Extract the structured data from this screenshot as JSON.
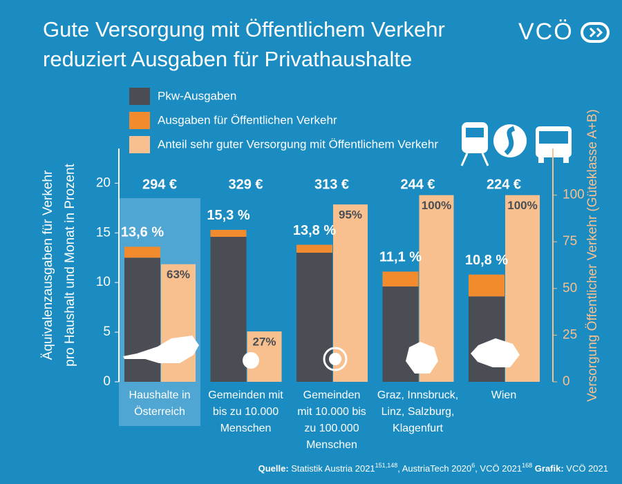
{
  "chart_data": {
    "type": "bar",
    "title": [
      "Gute Versorgung mit Öffentlichem Verkehr",
      "reduziert Ausgaben für Privathaushalte"
    ],
    "logo": "VCÖ",
    "y_label": [
      "Äquivalenzausgaben für Verkehr",
      "pro Haushalt und Monat in Prozent"
    ],
    "y2_label": "Versorgung Öffentlicher Verkehr (Güteklasse A+B)",
    "categories": [
      [
        "Haushalte in",
        "Österreich"
      ],
      [
        "Gemeinden mit",
        "bis zu 10.000",
        "Menschen"
      ],
      [
        "Gemeinden",
        "mit 10.000 bis",
        "zu 100.000",
        "Menschen"
      ],
      [
        "Graz, Innsbruck,",
        "Linz, Salzburg,",
        "Klagenfurt"
      ],
      [
        "Wien"
      ]
    ],
    "highlight": 0,
    "amounts": [
      "294 €",
      "329 €",
      "313 €",
      "244 €",
      "224 €"
    ],
    "series": [
      {
        "name": "Pkw-Ausgaben",
        "color": "#4a4e54",
        "values": [
          12.5,
          14.6,
          13.0,
          9.6,
          8.6
        ]
      },
      {
        "name": "Ausgaben für Öffentlichen Verkehr",
        "color": "#f28a2e",
        "values": [
          1.1,
          0.7,
          0.8,
          1.5,
          2.2
        ]
      },
      {
        "name": "Anteil sehr guter Versorgung mit Öffentlichem Verkehr",
        "color": "#f9c08f",
        "axis": "y2",
        "values": [
          63,
          27,
          95,
          100,
          100
        ],
        "value_labels": [
          "63%",
          "27%",
          "95%",
          "100%",
          "100%"
        ]
      }
    ],
    "totals": {
      "values": [
        13.6,
        15.3,
        13.8,
        11.1,
        10.8
      ],
      "value_labels": [
        "13,6 %",
        "15,3 %",
        "13,8 %",
        "11,1 %",
        "10,8 %"
      ]
    },
    "ylim": [
      0,
      23.5
    ],
    "yticks": [
      0,
      5,
      10,
      15,
      20
    ],
    "y2lim": [
      0,
      125
    ],
    "y2ticks": [
      0,
      25,
      50,
      75,
      100
    ],
    "source": [
      {
        "text": "Quelle: ",
        "bold": true
      },
      {
        "text": "Statistik Austria 2021"
      },
      {
        "text": "151,148",
        "sup": true
      },
      {
        "text": ", AustriaTech 2020"
      },
      {
        "text": "6",
        "sup": true
      },
      {
        "text": ", VCÖ 2021"
      },
      {
        "text": "168",
        "sup": true
      },
      {
        "text": " Grafik: ",
        "bold": true
      },
      {
        "text": "VCÖ 2021"
      }
    ]
  }
}
